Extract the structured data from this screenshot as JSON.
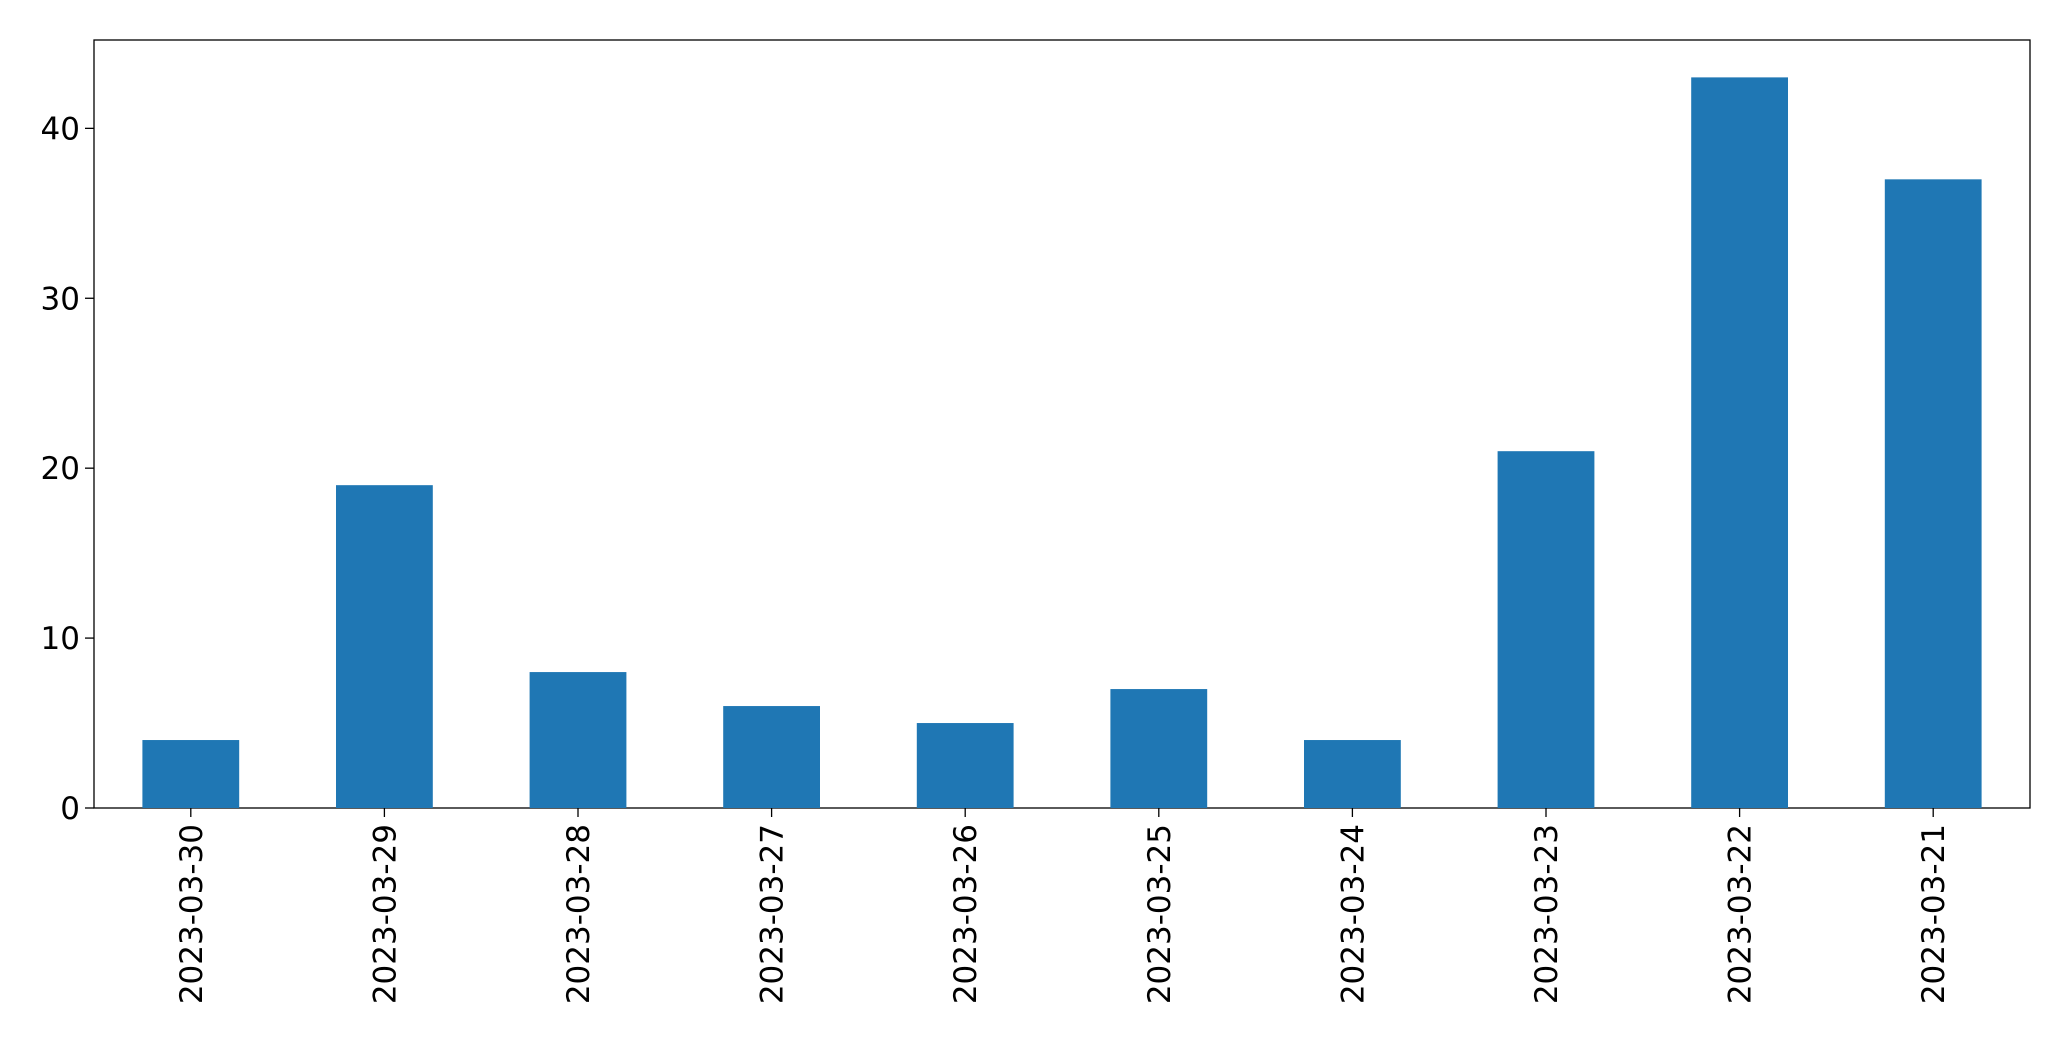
{
  "chart_data": {
    "type": "bar",
    "categories": [
      "2023-03-30",
      "2023-03-29",
      "2023-03-28",
      "2023-03-27",
      "2023-03-26",
      "2023-03-25",
      "2023-03-24",
      "2023-03-23",
      "2023-03-22",
      "2023-03-21"
    ],
    "values": [
      4,
      19,
      8,
      6,
      5,
      7,
      4,
      21,
      43,
      37
    ],
    "color": "#1f77b4",
    "ylim": [
      0,
      45.2
    ],
    "yticks": [
      0,
      10,
      20,
      30,
      40
    ],
    "grid": false
  }
}
